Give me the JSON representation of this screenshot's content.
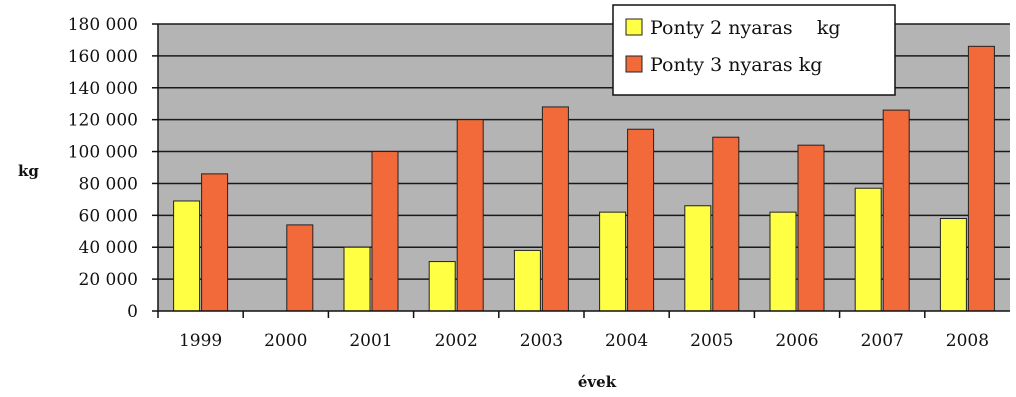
{
  "chart_data": {
    "type": "bar",
    "title": "",
    "xlabel": "évek",
    "ylabel": "kg",
    "categories": [
      "1999",
      "2000",
      "2001",
      "2002",
      "2003",
      "2004",
      "2005",
      "2006",
      "2007",
      "2008"
    ],
    "series": [
      {
        "name": "Ponty 2 nyaras    kg",
        "color": "#ffff44",
        "values": [
          69000,
          null,
          40000,
          31000,
          38000,
          62000,
          66000,
          62000,
          77000,
          58000
        ]
      },
      {
        "name": "Ponty 3 nyaras kg",
        "color": "#f26a3a",
        "values": [
          86000,
          54000,
          100000,
          120000,
          128000,
          114000,
          109000,
          104000,
          126000,
          166000
        ]
      }
    ],
    "ylim": [
      0,
      180000
    ],
    "yticks": [
      0,
      20000,
      40000,
      60000,
      80000,
      100000,
      120000,
      140000,
      160000,
      180000
    ],
    "ytick_labels": [
      "0",
      "20 000",
      "40 000",
      "60 000",
      "80 000",
      "100 000",
      "120 000",
      "140 000",
      "160 000",
      "180 000"
    ],
    "grid": true,
    "plot_background": "#b4b4b4",
    "legend_position": "top-right"
  }
}
